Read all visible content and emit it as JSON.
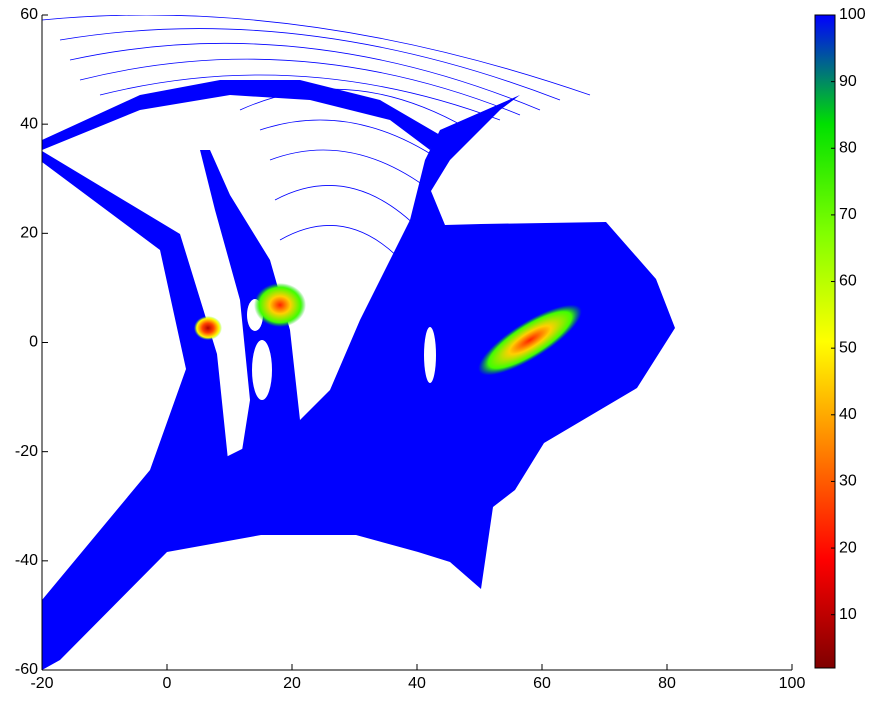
{
  "chart_data": {
    "type": "image",
    "xlim": [
      -20,
      100
    ],
    "xticks": [
      -20,
      0,
      20,
      40,
      60,
      80,
      100
    ],
    "ylim": [
      -60,
      60
    ],
    "yticks": [
      -60,
      -40,
      -20,
      0,
      20,
      40,
      60
    ],
    "clim": [
      2,
      100
    ],
    "cticks": [
      10,
      20,
      30,
      40,
      50,
      60,
      70,
      80,
      90,
      100
    ],
    "colormap": [
      "#7f0000",
      "#ff0000",
      "#ff8000",
      "#ffff00",
      "#80ff00",
      "#00e000",
      "#0000ff"
    ],
    "color": "#0000ff"
  }
}
